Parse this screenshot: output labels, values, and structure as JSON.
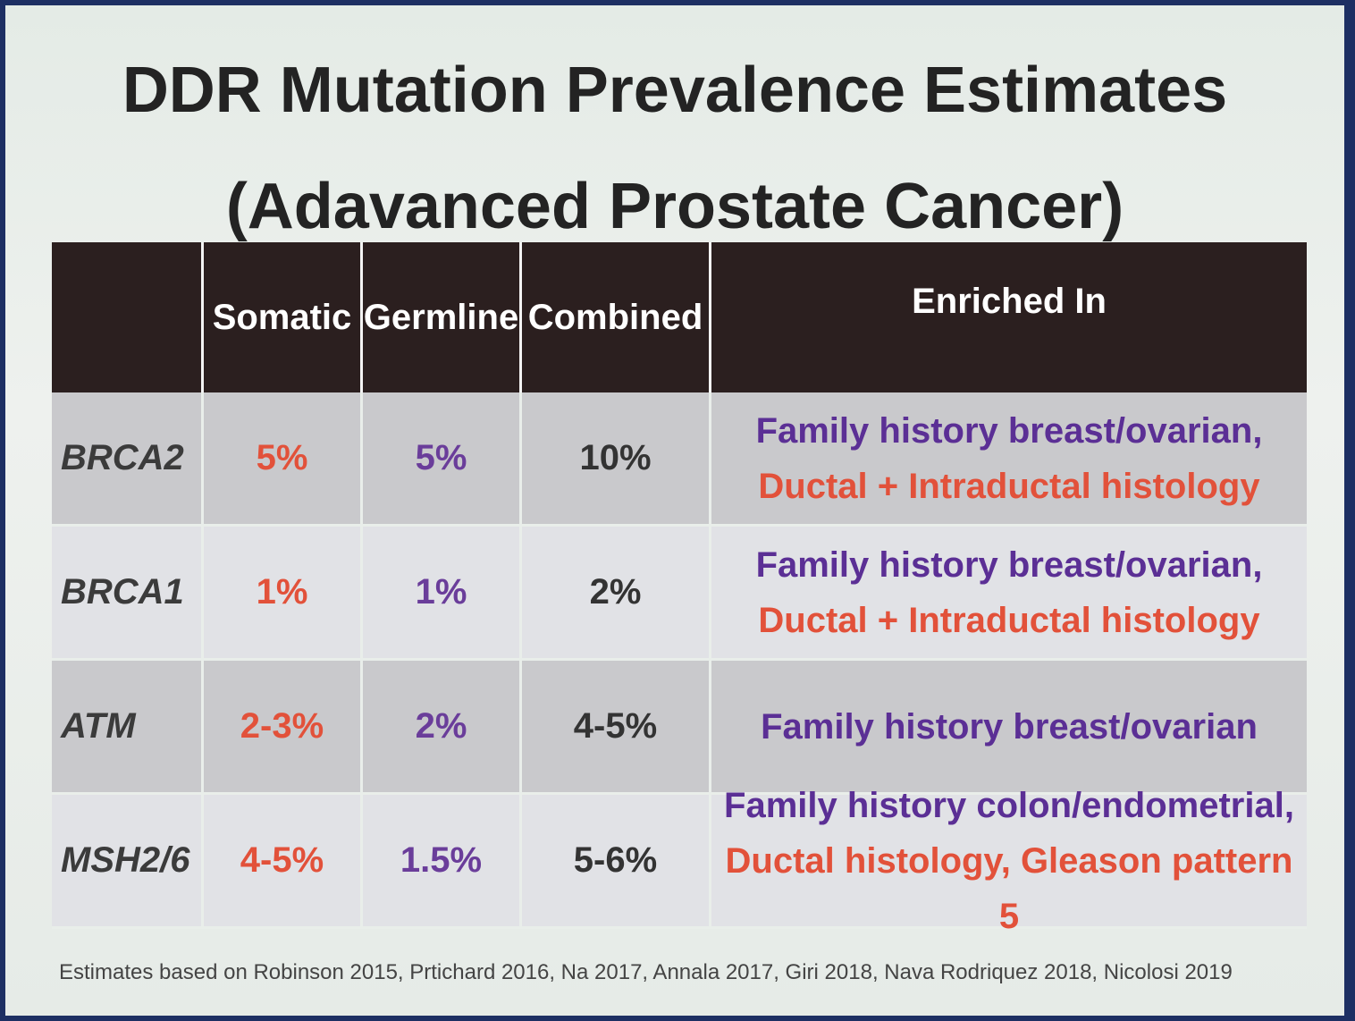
{
  "title": {
    "line1": "DDR Mutation Prevalence Estimates",
    "line2": "(Adavanced Prostate Cancer)"
  },
  "table": {
    "headers": [
      "",
      "Somatic",
      "Germline",
      "Combined",
      "Enriched In"
    ],
    "rows": [
      {
        "gene": "BRCA2",
        "somatic": "5%",
        "germline": "5%",
        "combined": "10%",
        "enriched_line1": "Family history breast/ovarian,",
        "enriched_line2": "Ductal + Intraductal histology"
      },
      {
        "gene": "BRCA1",
        "somatic": "1%",
        "germline": "1%",
        "combined": "2%",
        "enriched_line1": "Family history breast/ovarian,",
        "enriched_line2": "Ductal + Intraductal histology"
      },
      {
        "gene": "ATM",
        "somatic": "2-3%",
        "germline": "2%",
        "combined": "4-5%",
        "enriched_line1": "Family history breast/ovarian",
        "enriched_line2": ""
      },
      {
        "gene": "MSH2/6",
        "somatic": "4-5%",
        "germline": "1.5%",
        "combined": "5-6%",
        "enriched_line1": "Family history colon/endometrial,",
        "enriched_line2": "Ductal histology, Gleason pattern 5"
      }
    ]
  },
  "footnote": "Estimates based on Robinson 2015, Prtichard 2016, Na 2017, Annala 2017, Giri 2018, Nava Rodriquez 2018, Nicolosi 2019",
  "colors": {
    "header_bg": "#2b1f1f",
    "somatic_red": "#e2513a",
    "germline_purple": "#6a3d9a",
    "enriched_purple": "#5b2f95",
    "frame_blue": "#1d2f63"
  }
}
